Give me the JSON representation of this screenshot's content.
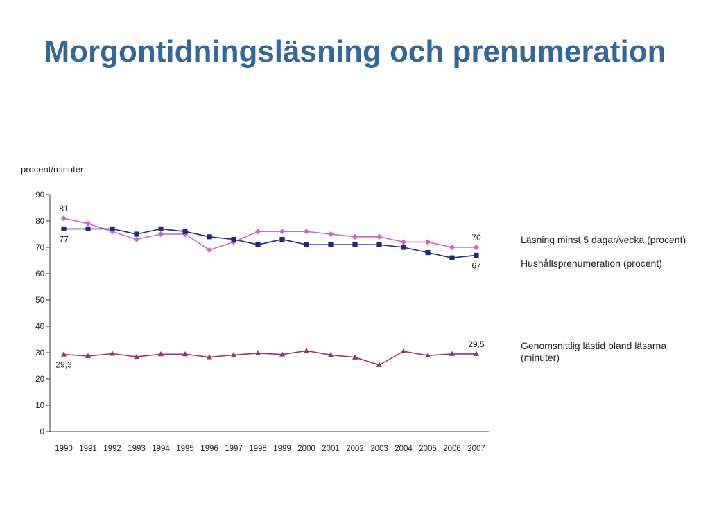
{
  "title": "Morgontidningsläsning och prenumeration",
  "chart_data": {
    "type": "line",
    "ylabel": "procent/minuter",
    "xlabel": "",
    "ylim": [
      0,
      90
    ],
    "yticks": [
      0,
      10,
      20,
      30,
      40,
      50,
      60,
      70,
      80,
      90
    ],
    "grid": false,
    "legend_position": "right",
    "x": [
      "1990",
      "1991",
      "1992",
      "1993",
      "1994",
      "1995",
      "1996",
      "1997",
      "1998",
      "1999",
      "2000",
      "2001",
      "2002",
      "2003",
      "2004",
      "2005",
      "2006",
      "2007"
    ],
    "series": [
      {
        "name": "Läsning minst 5 dagar/vecka (procent)",
        "marker": "diamond",
        "color": "#cc66cc",
        "values": [
          81,
          79,
          76,
          73,
          75,
          75,
          69,
          72,
          76,
          76,
          76,
          75,
          74,
          74,
          72,
          72,
          70,
          70
        ]
      },
      {
        "name": "Hushållsprenumeration (procent)",
        "marker": "square",
        "color": "#1f2a78",
        "values": [
          77,
          77,
          77,
          75,
          77,
          76,
          74,
          73,
          71,
          73,
          71,
          71,
          71,
          71,
          70,
          68,
          66,
          67
        ]
      },
      {
        "name": "Genomsnittlig lästid bland läsarna (minuter)",
        "name_lines": [
          "Genomsnittlig lästid bland läsarna",
          "(minuter)"
        ],
        "marker": "triangle",
        "color": "#993366",
        "values": [
          29.3,
          28.7,
          29.6,
          28.4,
          29.4,
          29.4,
          28.3,
          29.1,
          29.8,
          29.3,
          30.7,
          29.1,
          28.2,
          25.3,
          30.5,
          28.9,
          29.5,
          29.5
        ]
      }
    ],
    "annotations": [
      {
        "text": "81",
        "series": 0,
        "index": 0,
        "pos": "above"
      },
      {
        "text": "77",
        "series": 1,
        "index": 0,
        "pos": "below"
      },
      {
        "text": "70",
        "series": 0,
        "index": 17,
        "pos": "above"
      },
      {
        "text": "67",
        "series": 1,
        "index": 17,
        "pos": "below"
      },
      {
        "text": "29,3",
        "series": 2,
        "index": 0,
        "pos": "below"
      },
      {
        "text": "29,5",
        "series": 2,
        "index": 17,
        "pos": "above"
      }
    ]
  }
}
